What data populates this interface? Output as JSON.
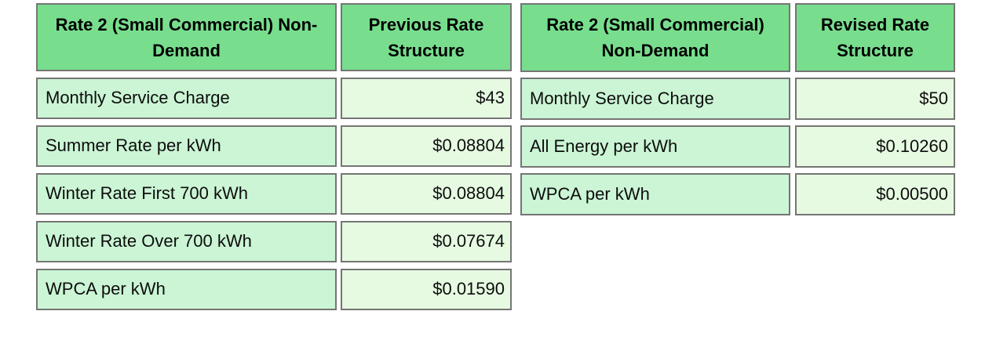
{
  "colors": {
    "header_bg": "#78DE8E",
    "label_bg": "#CBF5D5",
    "value_bg": "#E6FAE2",
    "border": "#757575",
    "text": "#0D0D0D",
    "page_bg": "#FFFFFF"
  },
  "tables": [
    {
      "name": "previous",
      "header": {
        "label": "Rate 2 (Small Commercial) Non-Demand",
        "value": "Previous Rate Structure"
      },
      "rows": [
        {
          "label": "Monthly Service Charge",
          "value": "$43"
        },
        {
          "label": "Summer Rate per kWh",
          "value": "$0.08804"
        },
        {
          "label": "Winter Rate First 700 kWh",
          "value": "$0.08804"
        },
        {
          "label": "Winter Rate Over 700 kWh",
          "value": "$0.07674"
        },
        {
          "label": "WPCA per kWh",
          "value": "$0.01590"
        }
      ]
    },
    {
      "name": "revised",
      "header": {
        "label": "Rate 2 (Small Commercial) Non-Demand",
        "value": "Revised Rate Structure"
      },
      "rows": [
        {
          "label": "Monthly Service Charge",
          "value": "$50"
        },
        {
          "label": "All Energy per kWh",
          "value": "$0.10260"
        },
        {
          "label": "WPCA per kWh",
          "value": "$0.00500"
        }
      ]
    }
  ]
}
